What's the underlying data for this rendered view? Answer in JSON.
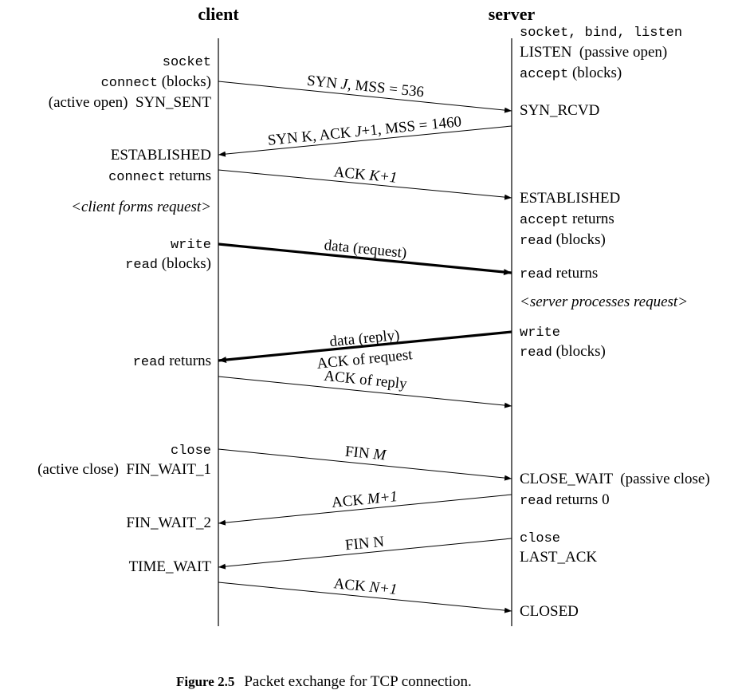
{
  "headers": {
    "client": "client",
    "server": "server"
  },
  "client_labels": {
    "socket": "socket",
    "connect_code": "connect",
    "connect_rest": " (blocks)",
    "active_open": "(active open)  SYN_SENT",
    "established": "ESTABLISHED",
    "connect_returns_code": "connect",
    "connect_returns_rest": " returns",
    "forms_request": "<client forms request>",
    "write": "write",
    "read_code": "read",
    "read_rest": " (blocks)",
    "read_returns_code": "read",
    "read_returns_rest": " returns",
    "close": "close",
    "active_close": "(active close)  FIN_WAIT_1",
    "fin_wait_2": "FIN_WAIT_2",
    "time_wait": "TIME_WAIT"
  },
  "server_labels": {
    "socket_bind_listen": "socket, bind, listen",
    "listen": "LISTEN  (passive open)",
    "accept_code": "accept",
    "accept_rest": " (blocks)",
    "syn_rcvd": "SYN_RCVD",
    "established": "ESTABLISHED",
    "accept_returns_code": "accept",
    "accept_returns_rest": " returns",
    "read_blocks_code": "read",
    "read_blocks_rest": " (blocks)",
    "read_returns_code": "read",
    "read_returns_rest": " returns",
    "processes_request": "<server processes request>",
    "write": "write",
    "read2_code": "read",
    "read2_rest": " (blocks)",
    "close_wait": "CLOSE_WAIT  (passive close)",
    "read_returns0_code": "read",
    "read_returns0_rest": " returns 0",
    "close": "close",
    "last_ack": "LAST_ACK",
    "closed": "CLOSED"
  },
  "messages": {
    "syn_j_a": "SYN ",
    "syn_j_b": "J",
    "syn_j_c": ", MSS = 536",
    "syn_k_a": "SYN K, ACK ",
    "syn_k_b": "J",
    "syn_k_c": "+1, MSS = 1460",
    "ack_k_a": "ACK ",
    "ack_k_b": "K+1",
    "data_request": "data (request)",
    "data_reply": "data (reply)",
    "ack_of_request": "ACK of request",
    "ack_of_reply": "ACK of reply",
    "fin_m_a": "FIN ",
    "fin_m_b": "M",
    "ack_m_a": "ACK ",
    "ack_m_b": "M+1",
    "fin_n": "FIN N",
    "ack_n_a": "ACK ",
    "ack_n_b": "N+1"
  },
  "caption": {
    "label": "Figure 2.5",
    "text": "Packet exchange for TCP connection."
  }
}
